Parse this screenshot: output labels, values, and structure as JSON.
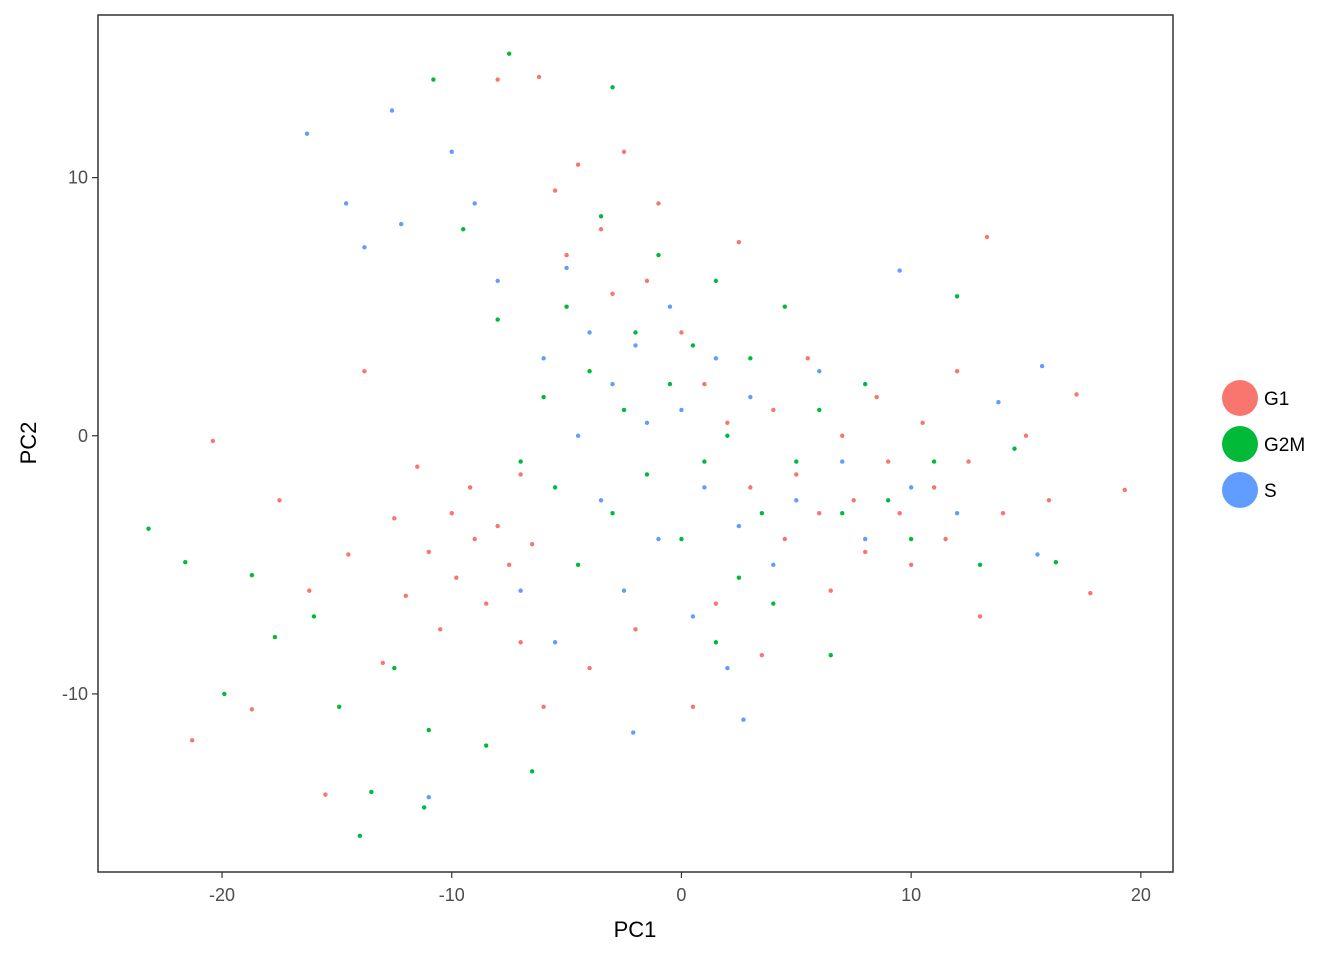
{
  "chart_data": {
    "type": "scatter",
    "title": "",
    "xlabel": "PC1",
    "ylabel": "PC2",
    "xlim": [
      -25.4,
      21.4
    ],
    "ylim": [
      -16.9,
      16.3
    ],
    "xticks": [
      -20,
      -10,
      0,
      10,
      20
    ],
    "xtick_labels": [
      "-20",
      "-10",
      "0",
      "10",
      "20"
    ],
    "yticks": [
      -10,
      0,
      10
    ],
    "ytick_labels": [
      "-10",
      "0",
      "10"
    ],
    "grid": false,
    "legend_position": "right",
    "series": [
      {
        "name": "G1",
        "color": "#F8766D",
        "points": [
          [
            -21.3,
            -11.8
          ],
          [
            -20.4,
            -0.2
          ],
          [
            -18.7,
            -10.6
          ],
          [
            -17.5,
            -2.5
          ],
          [
            -16.2,
            -6
          ],
          [
            -15.5,
            -13.9
          ],
          [
            -14.5,
            -4.6
          ],
          [
            -13.8,
            2.5
          ],
          [
            -13,
            -8.8
          ],
          [
            -12.5,
            -3.2
          ],
          [
            -12,
            -6.2
          ],
          [
            -11.5,
            -1.2
          ],
          [
            -11,
            -4.5
          ],
          [
            -10.5,
            -7.5
          ],
          [
            -10,
            -3
          ],
          [
            -9.8,
            -5.5
          ],
          [
            -9.2,
            -2
          ],
          [
            -9,
            -4
          ],
          [
            -8.5,
            -6.5
          ],
          [
            -8,
            -3.5
          ],
          [
            -7.5,
            -5
          ],
          [
            -7,
            -1.5
          ],
          [
            -7,
            -8
          ],
          [
            -6.5,
            -4.2
          ],
          [
            -6,
            -10.5
          ],
          [
            -5.5,
            9.5
          ],
          [
            -5,
            7
          ],
          [
            -4.5,
            10.5
          ],
          [
            -4,
            -9
          ],
          [
            -3.5,
            8
          ],
          [
            -3,
            5.5
          ],
          [
            -2.5,
            11
          ],
          [
            -2,
            -7.5
          ],
          [
            -1.5,
            6
          ],
          [
            -1,
            9
          ],
          [
            0,
            4
          ],
          [
            0.5,
            -10.5
          ],
          [
            1,
            2
          ],
          [
            1.5,
            -6.5
          ],
          [
            2,
            0.5
          ],
          [
            2.5,
            7.5
          ],
          [
            3,
            -2
          ],
          [
            3.5,
            -8.5
          ],
          [
            4,
            1
          ],
          [
            4.5,
            -4
          ],
          [
            5,
            -1.5
          ],
          [
            5.5,
            3
          ],
          [
            6,
            -3
          ],
          [
            6.5,
            -6
          ],
          [
            7,
            0
          ],
          [
            7.5,
            -2.5
          ],
          [
            8,
            -4.5
          ],
          [
            8.5,
            1.5
          ],
          [
            9,
            -1
          ],
          [
            9.5,
            -3
          ],
          [
            10,
            -5
          ],
          [
            10.5,
            0.5
          ],
          [
            11,
            -2
          ],
          [
            11.5,
            -4
          ],
          [
            12,
            2.5
          ],
          [
            12.5,
            -1
          ],
          [
            13,
            -7
          ],
          [
            13.3,
            7.7
          ],
          [
            14,
            -3
          ],
          [
            15,
            0
          ],
          [
            16,
            -2.5
          ],
          [
            17.2,
            1.6
          ],
          [
            17.8,
            -6.1
          ],
          [
            19.3,
            -2.1
          ],
          [
            -6.2,
            13.9
          ],
          [
            -8,
            13.8
          ]
        ]
      },
      {
        "name": "G2M",
        "color": "#00BA38",
        "points": [
          [
            -23.2,
            -3.6
          ],
          [
            -21.6,
            -4.9
          ],
          [
            -19.9,
            -10
          ],
          [
            -18.7,
            -5.4
          ],
          [
            -17.7,
            -7.8
          ],
          [
            -16,
            -7
          ],
          [
            -14.9,
            -10.5
          ],
          [
            -14,
            -15.5
          ],
          [
            -13.5,
            -13.8
          ],
          [
            -12.5,
            -9
          ],
          [
            -11.2,
            -14.4
          ],
          [
            -11,
            -11.4
          ],
          [
            -10.8,
            13.8
          ],
          [
            -9.5,
            8
          ],
          [
            -8.5,
            -12
          ],
          [
            -8,
            4.5
          ],
          [
            -7.5,
            14.8
          ],
          [
            -7,
            -1
          ],
          [
            -6.5,
            -13
          ],
          [
            -6,
            1.5
          ],
          [
            -5.5,
            -2
          ],
          [
            -5,
            5
          ],
          [
            -4.5,
            -5
          ],
          [
            -4,
            2.5
          ],
          [
            -3.5,
            8.5
          ],
          [
            -3,
            -3
          ],
          [
            -2.5,
            1
          ],
          [
            -2,
            4
          ],
          [
            -1.5,
            -1.5
          ],
          [
            -1,
            7
          ],
          [
            -0.5,
            2
          ],
          [
            0,
            -4
          ],
          [
            0.5,
            3.5
          ],
          [
            1,
            -1
          ],
          [
            1.5,
            6
          ],
          [
            2,
            0
          ],
          [
            2.5,
            -5.5
          ],
          [
            3,
            3
          ],
          [
            3.5,
            -3
          ],
          [
            4,
            -6.5
          ],
          [
            4.5,
            5
          ],
          [
            5,
            -1
          ],
          [
            6,
            1
          ],
          [
            6.5,
            -8.5
          ],
          [
            7,
            -3
          ],
          [
            8,
            2
          ],
          [
            9,
            -2.5
          ],
          [
            10,
            -4
          ],
          [
            11,
            -1
          ],
          [
            12,
            5.4
          ],
          [
            13,
            -5
          ],
          [
            14.5,
            -0.5
          ],
          [
            16.3,
            -4.9
          ],
          [
            -3,
            13.5
          ],
          [
            1.5,
            -8
          ]
        ]
      },
      {
        "name": "S",
        "color": "#619CFF",
        "points": [
          [
            -16.3,
            11.7
          ],
          [
            -14.6,
            9
          ],
          [
            -13.8,
            7.3
          ],
          [
            -12.6,
            12.6
          ],
          [
            -12.2,
            8.2
          ],
          [
            -11,
            -14
          ],
          [
            -10,
            11
          ],
          [
            -9,
            9
          ],
          [
            -8,
            6
          ],
          [
            -7,
            -6
          ],
          [
            -6,
            3
          ],
          [
            -5.5,
            -8
          ],
          [
            -5,
            6.5
          ],
          [
            -4.5,
            0
          ],
          [
            -4,
            4
          ],
          [
            -3.5,
            -2.5
          ],
          [
            -3,
            2
          ],
          [
            -2.5,
            -6
          ],
          [
            -2,
            3.5
          ],
          [
            -1.5,
            0.5
          ],
          [
            -1,
            -4
          ],
          [
            -0.5,
            5
          ],
          [
            0,
            1
          ],
          [
            0.5,
            -7
          ],
          [
            1,
            -2
          ],
          [
            1.5,
            3
          ],
          [
            2,
            -9
          ],
          [
            2.5,
            -3.5
          ],
          [
            3,
            1.5
          ],
          [
            4,
            -5
          ],
          [
            5,
            -2.5
          ],
          [
            6,
            2.5
          ],
          [
            7,
            -1
          ],
          [
            8,
            -4
          ],
          [
            9.5,
            6.4
          ],
          [
            10,
            -2
          ],
          [
            12,
            -3
          ],
          [
            13.8,
            1.3
          ],
          [
            15.7,
            2.7
          ],
          [
            15.5,
            -4.6
          ],
          [
            2.7,
            -11
          ],
          [
            -2.1,
            -11.5
          ]
        ]
      }
    ]
  }
}
